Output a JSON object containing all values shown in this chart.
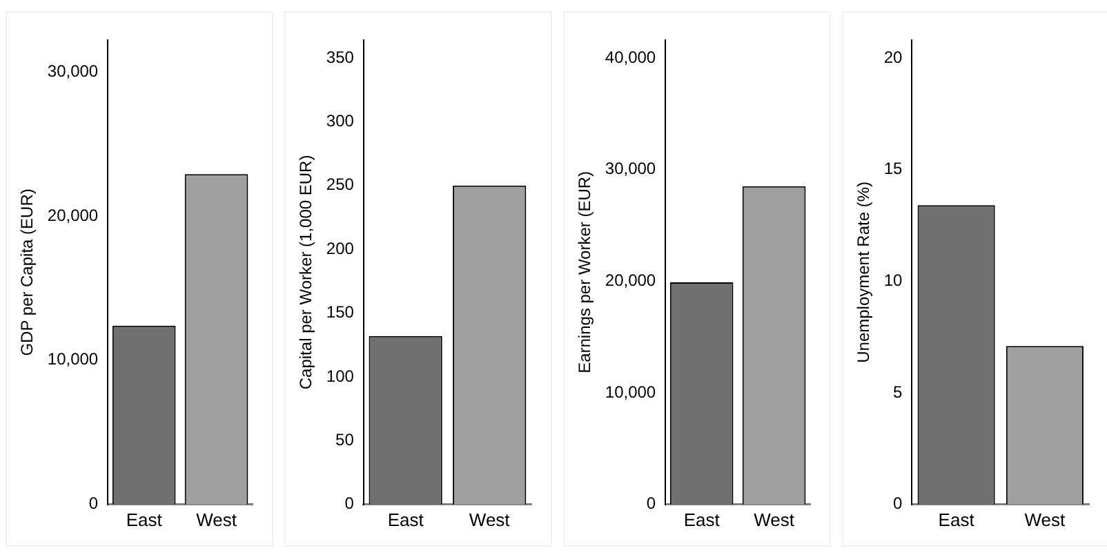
{
  "chart_data": [
    {
      "type": "bar",
      "ylabel": "GDP per Capita (EUR)",
      "categories": [
        "East",
        "West"
      ],
      "values": [
        12400,
        22900
      ],
      "colors": [
        "#707070",
        "#a0a0a0"
      ],
      "ylim": [
        0,
        32200
      ],
      "yticks": [
        {
          "value": 0,
          "label": "0"
        },
        {
          "value": 10000,
          "label": "10,000"
        },
        {
          "value": 20000,
          "label": "20,000"
        },
        {
          "value": 30000,
          "label": "30,000"
        }
      ],
      "grid": false
    },
    {
      "type": "bar",
      "ylabel": "Capital per Worker (1,000 EUR)",
      "categories": [
        "East",
        "West"
      ],
      "values": [
        132,
        250
      ],
      "colors": [
        "#707070",
        "#a0a0a0"
      ],
      "ylim": [
        0,
        364
      ],
      "yticks": [
        0,
        50,
        100,
        150,
        200,
        250,
        300,
        350
      ],
      "grid": false
    },
    {
      "type": "bar",
      "ylabel": "Earnings per Worker (EUR)",
      "categories": [
        "East",
        "West"
      ],
      "values": [
        19900,
        28500
      ],
      "colors": [
        "#707070",
        "#a0a0a0"
      ],
      "ylim": [
        0,
        41600
      ],
      "yticks": [
        {
          "value": 0,
          "label": "0"
        },
        {
          "value": 10000,
          "label": "10,000"
        },
        {
          "value": 20000,
          "label": "20,000"
        },
        {
          "value": 30000,
          "label": "30,000"
        },
        {
          "value": 40000,
          "label": "40,000"
        }
      ],
      "grid": false
    },
    {
      "type": "bar",
      "ylabel": "Unemployment Rate (%)",
      "categories": [
        "East",
        "West"
      ],
      "values": [
        13.4,
        7.1
      ],
      "colors": [
        "#707070",
        "#a0a0a0"
      ],
      "ylim": [
        0,
        20.8
      ],
      "yticks": [
        0,
        5,
        10,
        15,
        20
      ],
      "grid": false
    }
  ]
}
